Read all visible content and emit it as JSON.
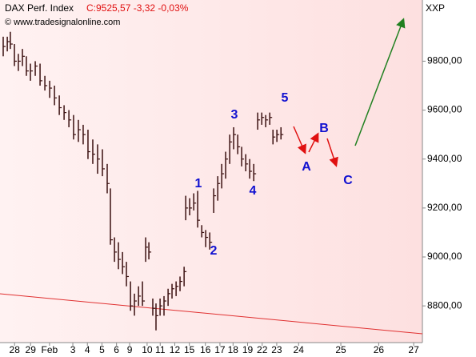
{
  "chart_data": {
    "type": "ohlc",
    "title": "DAX Perf. Index",
    "subtitle": "C:9525,57 -3,32 -0,03%",
    "source": "© www.tradesignalonline.com",
    "axis_name": "XXP",
    "annotations": [
      "1",
      "2",
      "3",
      "4",
      "5",
      "A",
      "B",
      "C"
    ],
    "color": "#3a1010",
    "ylim": [
      8650,
      10050
    ],
    "yticks": [
      {
        "value": 8800,
        "label": "8800,00"
      },
      {
        "value": 9000,
        "label": "9000,00"
      },
      {
        "value": 9200,
        "label": "9200,00"
      },
      {
        "value": 9400,
        "label": "9400,00"
      },
      {
        "value": 9600,
        "label": "9600,00"
      },
      {
        "value": 9800,
        "label": "9800,00"
      }
    ],
    "xlim": [
      -1,
      28
    ],
    "xticks": [
      {
        "value": 0,
        "label": "28"
      },
      {
        "value": 1.1,
        "label": "29"
      },
      {
        "value": 2.4,
        "label": "Feb"
      },
      {
        "value": 4,
        "label": "3"
      },
      {
        "value": 5,
        "label": "4"
      },
      {
        "value": 6,
        "label": "5"
      },
      {
        "value": 7,
        "label": "6"
      },
      {
        "value": 7.9,
        "label": "9"
      },
      {
        "value": 9.1,
        "label": "10"
      },
      {
        "value": 10,
        "label": "11"
      },
      {
        "value": 11,
        "label": "12"
      },
      {
        "value": 12,
        "label": "15"
      },
      {
        "value": 13.1,
        "label": "16"
      },
      {
        "value": 14.1,
        "label": "17"
      },
      {
        "value": 15,
        "label": "18"
      },
      {
        "value": 16,
        "label": "19"
      },
      {
        "value": 17,
        "label": "22"
      },
      {
        "value": 18,
        "label": "23"
      },
      {
        "value": 19.5,
        "label": "24"
      },
      {
        "value": 22.4,
        "label": "25"
      },
      {
        "value": 25,
        "label": "26"
      },
      {
        "value": 27.4,
        "label": "27"
      }
    ],
    "x": [
      -0.78,
      -0.5,
      -0.29,
      -0.01,
      0.26,
      0.54,
      0.81,
      1.09,
      1.42,
      1.75,
      2.08,
      2.41,
      2.74,
      3.07,
      3.4,
      3.73,
      4.05,
      4.38,
      4.71,
      5.04,
      5.37,
      5.7,
      6.03,
      6.36,
      6.58,
      6.86,
      7.13,
      7.41,
      7.68,
      7.96,
      8.23,
      8.51,
      8.78,
      9.0,
      9.22,
      9.49,
      9.71,
      9.99,
      10.26,
      10.54,
      10.81,
      11.09,
      11.36,
      11.64,
      11.75,
      12.02,
      12.3,
      12.57,
      12.85,
      13.12,
      13.4,
      13.67,
      13.95,
      14.22,
      14.49,
      14.77,
      15.04,
      15.32,
      15.59,
      15.87,
      16.14,
      16.42,
      16.69,
      16.97,
      17.24,
      17.52,
      17.74,
      18.01,
      18.29
    ],
    "high": [
      9900,
      9900,
      9920,
      9870,
      9830,
      9850,
      9820,
      9790,
      9800,
      9790,
      9740,
      9720,
      9700,
      9660,
      9620,
      9600,
      9580,
      9560,
      9540,
      9520,
      9480,
      9460,
      9440,
      9380,
      9280,
      9080,
      9060,
      9020,
      8980,
      8900,
      8850,
      8880,
      8900,
      9080,
      9060,
      8830,
      8810,
      8830,
      8840,
      8870,
      8890,
      8900,
      8920,
      8960,
      9250,
      9240,
      9260,
      9270,
      9130,
      9110,
      9100,
      9280,
      9330,
      9380,
      9430,
      9500,
      9530,
      9500,
      9450,
      9420,
      9400,
      9380,
      9590,
      9590,
      9580,
      9590,
      9520,
      9520,
      9530
    ],
    "low": [
      9820,
      9840,
      9850,
      9780,
      9760,
      9780,
      9740,
      9720,
      9740,
      9700,
      9680,
      9650,
      9620,
      9580,
      9560,
      9530,
      9480,
      9470,
      9460,
      9400,
      9380,
      9340,
      9330,
      9260,
      9050,
      8980,
      8950,
      8930,
      8880,
      8780,
      8760,
      8800,
      8800,
      8980,
      8990,
      8760,
      8700,
      8760,
      8760,
      8800,
      8830,
      8840,
      8860,
      8880,
      9150,
      9170,
      9190,
      9120,
      9080,
      9040,
      9030,
      9180,
      9230,
      9280,
      9320,
      9380,
      9440,
      9420,
      9370,
      9350,
      9320,
      9310,
      9520,
      9540,
      9530,
      9540,
      9460,
      9470,
      9480
    ],
    "close": [
      9860,
      9880,
      9870,
      9800,
      9800,
      9820,
      9760,
      9760,
      9780,
      9720,
      9700,
      9690,
      9650,
      9610,
      9590,
      9560,
      9500,
      9520,
      9500,
      9430,
      9420,
      9400,
      9360,
      9300,
      9070,
      9020,
      8990,
      8960,
      8920,
      8800,
      8820,
      8840,
      8820,
      9040,
      9020,
      8790,
      8760,
      8800,
      8820,
      8850,
      8870,
      8880,
      8900,
      8940,
      9200,
      9200,
      9220,
      9150,
      9100,
      9080,
      9060,
      9250,
      9300,
      9340,
      9400,
      9470,
      9500,
      9450,
      9400,
      9380,
      9350,
      9340,
      9560,
      9570,
      9560,
      9570,
      9490,
      9500,
      9500
    ]
  }
}
